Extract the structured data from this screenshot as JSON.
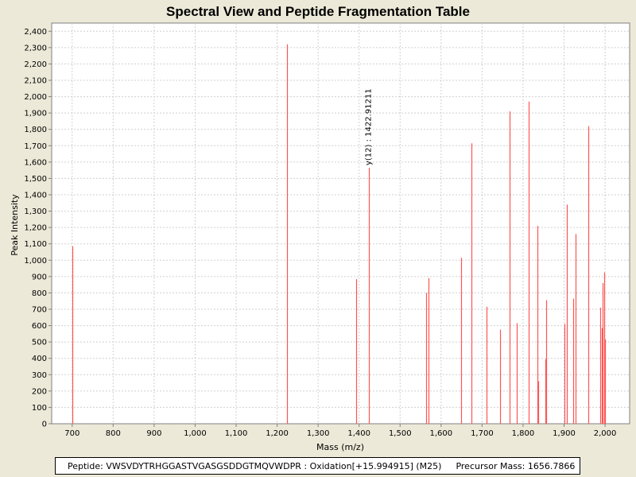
{
  "chart_data": {
    "type": "bar",
    "title": "Spectral View and Peptide Fragmentation Table",
    "xlabel": "Mass (m/z)",
    "ylabel": "Peak Intensity",
    "xlim": [
      650,
      2060
    ],
    "ylim": [
      0,
      2450
    ],
    "x_ticks": [
      700,
      800,
      900,
      1000,
      1100,
      1200,
      1300,
      1400,
      1500,
      1600,
      1700,
      1800,
      1900,
      2000
    ],
    "x_tick_labels": [
      "700",
      "800",
      "900",
      "1,000",
      "1,100",
      "1,200",
      "1,300",
      "1,400",
      "1,500",
      "1,600",
      "1,700",
      "1,800",
      "1,900",
      "2,000"
    ],
    "y_ticks": [
      0,
      100,
      200,
      300,
      400,
      500,
      600,
      700,
      800,
      900,
      1000,
      1100,
      1200,
      1300,
      1400,
      1500,
      1600,
      1700,
      1800,
      1900,
      2000,
      2100,
      2200,
      2300,
      2400
    ],
    "y_tick_labels": [
      "0",
      "100",
      "200",
      "300",
      "400",
      "500",
      "600",
      "700",
      "800",
      "900",
      "1,000",
      "1,100",
      "1,200",
      "1,300",
      "1,400",
      "1,500",
      "1,600",
      "1,700",
      "1,800",
      "1,900",
      "2,000",
      "2,100",
      "2,200",
      "2,300",
      "2,400"
    ],
    "grid": true,
    "bar_color": "#ff5555",
    "peaks": [
      {
        "mz": 701,
        "intensity": 1085
      },
      {
        "mz": 1224,
        "intensity": 2320
      },
      {
        "mz": 1392,
        "intensity": 885
      },
      {
        "mz": 1423,
        "intensity": 1565
      },
      {
        "mz": 1564,
        "intensity": 800
      },
      {
        "mz": 1569,
        "intensity": 890
      },
      {
        "mz": 1649,
        "intensity": 1015
      },
      {
        "mz": 1674,
        "intensity": 1715
      },
      {
        "mz": 1710,
        "intensity": 715
      },
      {
        "mz": 1743,
        "intensity": 575
      },
      {
        "mz": 1768,
        "intensity": 1910
      },
      {
        "mz": 1785,
        "intensity": 615
      },
      {
        "mz": 1813,
        "intensity": 1970
      },
      {
        "mz": 1835,
        "intensity": 1210
      },
      {
        "mz": 1837,
        "intensity": 260
      },
      {
        "mz": 1854,
        "intensity": 395
      },
      {
        "mz": 1857,
        "intensity": 755
      },
      {
        "mz": 1901,
        "intensity": 610
      },
      {
        "mz": 1906,
        "intensity": 1340
      },
      {
        "mz": 1922,
        "intensity": 765
      },
      {
        "mz": 1929,
        "intensity": 1160
      },
      {
        "mz": 1960,
        "intensity": 1820
      },
      {
        "mz": 1989,
        "intensity": 710
      },
      {
        "mz": 1992,
        "intensity": 585
      },
      {
        "mz": 1995,
        "intensity": 860
      },
      {
        "mz": 1998,
        "intensity": 925
      },
      {
        "mz": 2000,
        "intensity": 515
      }
    ],
    "annotations": [
      {
        "mz": 1423,
        "intensity": 1565,
        "label": "y(12) : 1422.91211"
      }
    ]
  },
  "info": {
    "peptide": "Peptide: VWSVDYTRHGGASTVGASGSDDGTMQVWDPR : Oxidation[+15.994915] (M25)",
    "precursor": "Precursor Mass: 1656.7866"
  }
}
